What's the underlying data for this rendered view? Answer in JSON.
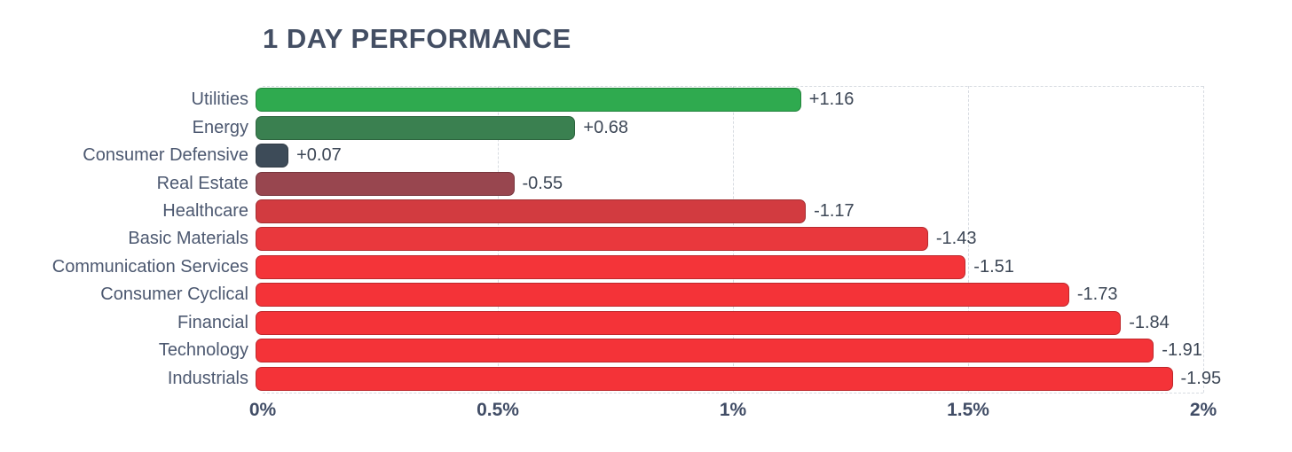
{
  "chart_data": {
    "type": "bar",
    "orientation": "horizontal",
    "title": "1 DAY PERFORMANCE",
    "xlabel": "",
    "ylabel": "",
    "xlim": [
      0,
      2
    ],
    "grid": "dashed-vertical",
    "legend": "none",
    "x_ticks": [
      {
        "label": "0%",
        "value": 0
      },
      {
        "label": "0.5%",
        "value": 0.5
      },
      {
        "label": "1%",
        "value": 1
      },
      {
        "label": "1.5%",
        "value": 1.5
      },
      {
        "label": "2%",
        "value": 2
      }
    ],
    "categories": [
      "Utilities",
      "Energy",
      "Consumer Defensive",
      "Real Estate",
      "Healthcare",
      "Basic Materials",
      "Communication Services",
      "Consumer Cyclical",
      "Financial",
      "Technology",
      "Industrials"
    ],
    "values": [
      1.16,
      0.68,
      0.07,
      0.55,
      1.17,
      1.43,
      1.51,
      1.73,
      1.84,
      1.91,
      1.95
    ],
    "signed_values": [
      1.16,
      0.68,
      0.07,
      -0.55,
      -1.17,
      -1.43,
      -1.51,
      -1.73,
      -1.84,
      -1.91,
      -1.95
    ],
    "value_labels": [
      "+1.16",
      "+0.68",
      "+0.07",
      "-0.55",
      "-1.17",
      "-1.43",
      "-1.51",
      "-1.73",
      "-1.84",
      "-1.91",
      "-1.95"
    ],
    "bar_colors": [
      "#2faa4f",
      "#3a8050",
      "#3d4b58",
      "#98464f",
      "#d23b40",
      "#e9383d",
      "#f43439",
      "#f43338",
      "#f43338",
      "#f43338",
      "#f43338"
    ]
  },
  "colors": {
    "title_text": "#434e63",
    "category_text": "#4c5870",
    "value_text": "#3d4756",
    "tick_text": "#414d66",
    "gridline": "#d7dbe1",
    "background": "#ffffff",
    "positive_green": "#2faa4f",
    "negative_red": "#f43338",
    "neutral_slate": "#3d4b58"
  }
}
